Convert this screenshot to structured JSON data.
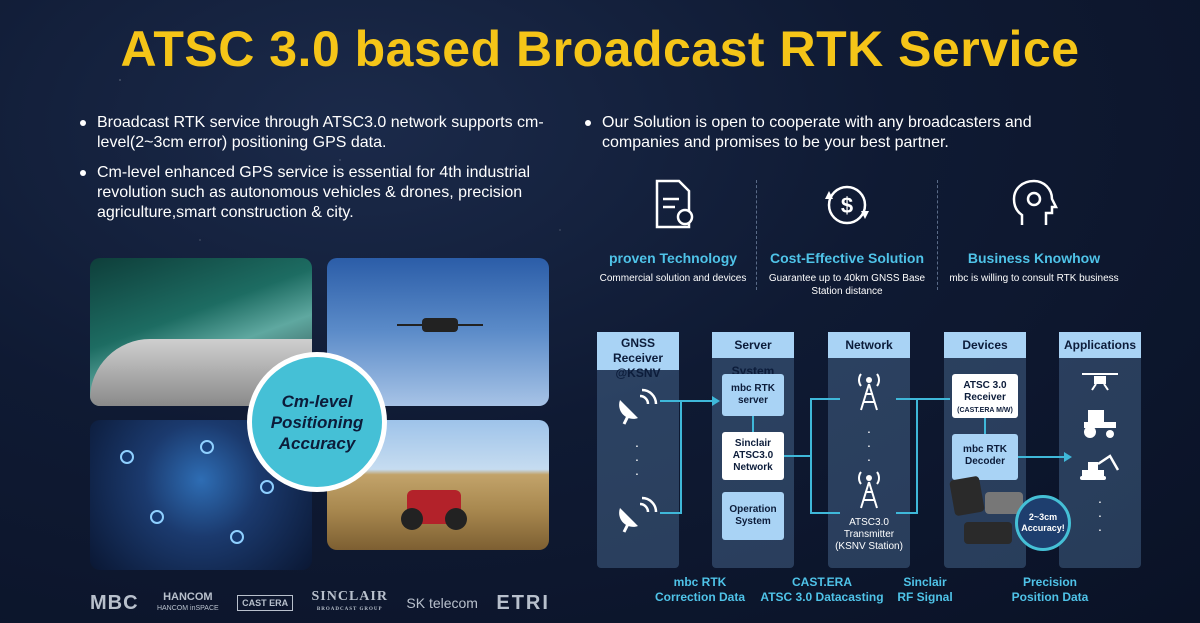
{
  "title": "ATSC 3.0 based Broadcast RTK Service",
  "left_bullets": [
    "Broadcast RTK service through ATSC3.0 network supports cm-level(2~3cm error) positioning GPS data.",
    "Cm-level enhanced GPS service is essential for 4th industrial revolution such as autonomous vehicles & drones, precision agriculture,smart construction & city."
  ],
  "right_bullets": [
    "Our Solution is open to cooperate with any broadcasters and companies and promises to be your best partner."
  ],
  "badge": {
    "line1": "Cm-level",
    "line2": "Positioning",
    "line3": "Accuracy"
  },
  "logos": {
    "mbc": "MBC",
    "hancom": "HANCOM",
    "hancom_sub": "HANCOM inSPACE",
    "cast": "CAST ERA",
    "sinclair": "SINCLAIR",
    "sinclair_sub": "BROADCAST GROUP",
    "sk": "SK telecom",
    "etri": "ETRI"
  },
  "features": [
    {
      "icon": "document-gear-icon",
      "name": "proven Technology",
      "desc": "Commercial solution and devices"
    },
    {
      "icon": "dollar-cycle-icon",
      "name": "Cost-Effective Solution",
      "desc": "Guarantee up to 40km GNSS Base Station distance"
    },
    {
      "icon": "head-gear-icon",
      "name": "Business Knowhow",
      "desc": "mbc is willing to consult RTK business"
    }
  ],
  "diagram": {
    "columns": [
      {
        "line1": "GNSS Receiver",
        "line2": "@KSNV"
      },
      {
        "label": "Server System"
      },
      {
        "label": "Network"
      },
      {
        "label": "Devices"
      },
      {
        "label": "Applications"
      }
    ],
    "server_boxes": [
      {
        "line1": "mbc RTK",
        "line2": "server"
      },
      {
        "line1": "Sinclair",
        "line2": "ATSC3.0",
        "line3": "Network"
      },
      {
        "line1": "Operation",
        "line2": "System"
      }
    ],
    "transmitter_label": {
      "line1": "ATSC3.0",
      "line2": "Transmitter",
      "line3": "(KSNV Station)"
    },
    "device_boxes": [
      {
        "line1": "ATSC 3.0",
        "line2": "Receiver",
        "line3": "(CAST.ERA M/W)"
      },
      {
        "line1": "mbc RTK",
        "line2": "Decoder"
      }
    ],
    "accuracy_badge": {
      "line1": "2~3cm",
      "line2": "Accuracy!"
    },
    "bottom_labels": [
      {
        "line1": "mbc RTK",
        "line2": "Correction Data"
      },
      {
        "line1": "CAST.ERA",
        "line2": "ATSC 3.0 Datacasting"
      },
      {
        "line1": "Sinclair",
        "line2": "RF Signal"
      },
      {
        "line1": "Precision",
        "line2": "Position Data"
      }
    ]
  },
  "colors": {
    "title": "#f5c518",
    "accent": "#4fc3e8",
    "badge": "#45c0d6",
    "column_header": "#a9d3f5"
  }
}
